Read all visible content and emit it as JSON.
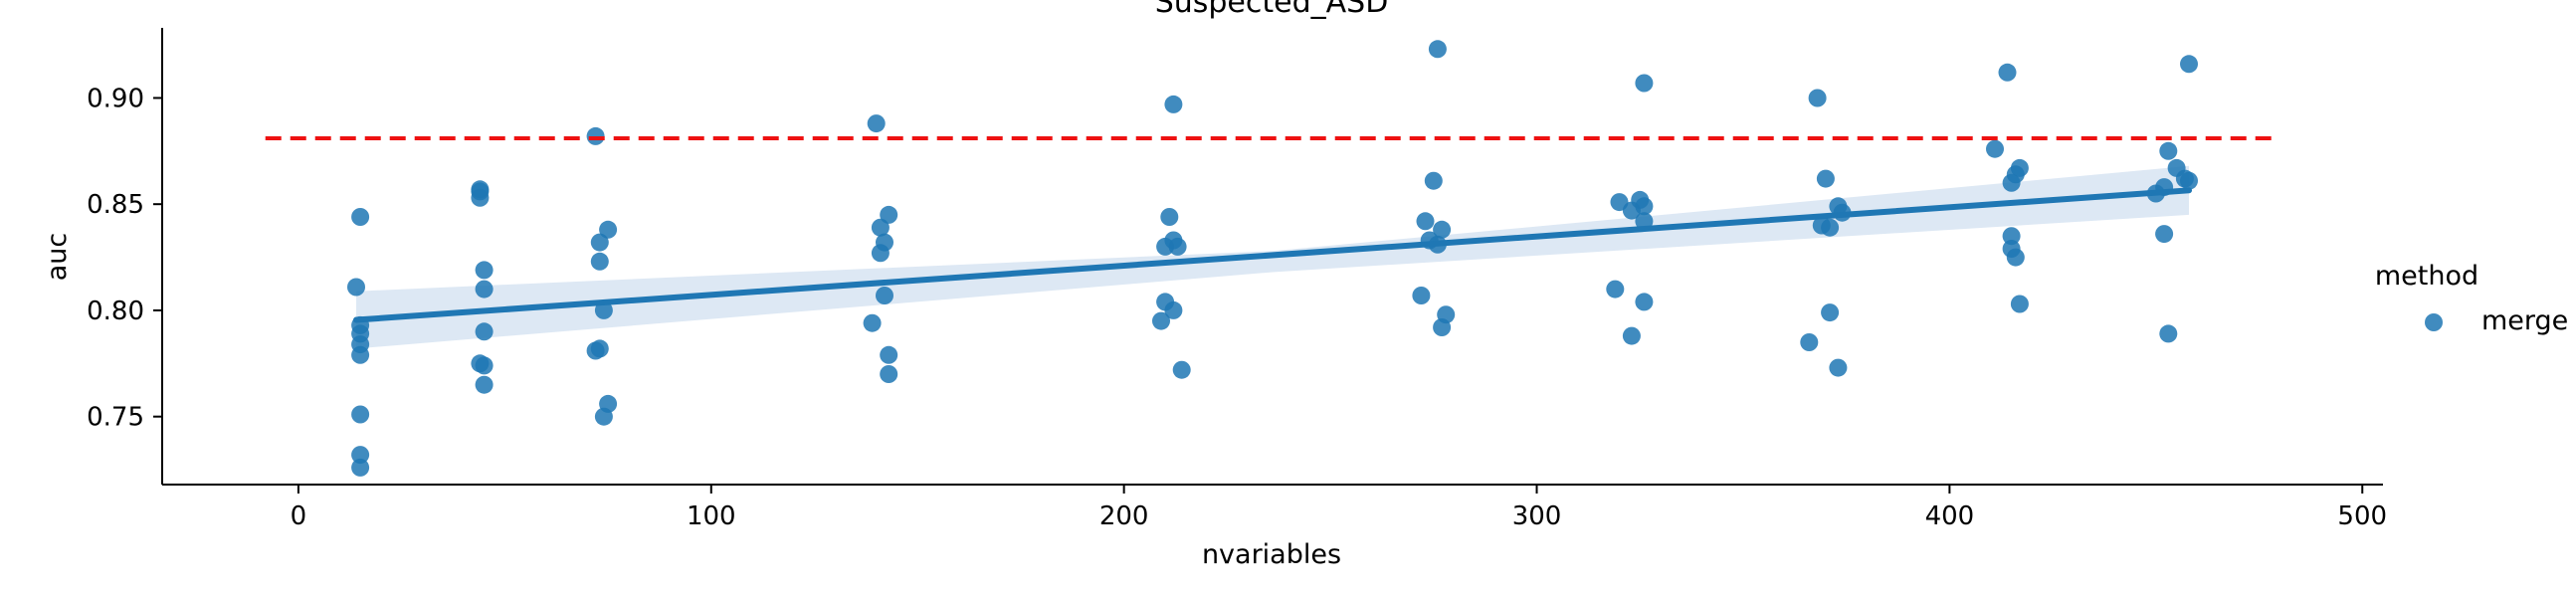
{
  "chart_data": {
    "type": "scatter",
    "title": "Suspected_ASD",
    "xlabel": "nvariables",
    "ylabel": "auc",
    "xlim": [
      -33,
      505
    ],
    "ylim": [
      0.718,
      0.933
    ],
    "xticks": [
      0,
      100,
      200,
      300,
      400,
      500
    ],
    "yticks": [
      0.75,
      0.8,
      0.85,
      0.9
    ],
    "ytick_labels": [
      "0.75",
      "0.80",
      "0.85",
      "0.90"
    ],
    "grid": false,
    "legend": {
      "title": "method",
      "placement": "right",
      "entries": [
        "merge"
      ]
    },
    "colors": {
      "points": "#1f77b4",
      "reference_line": "#ee1111",
      "ci_band": "#c6d9ec"
    },
    "series": [
      {
        "name": "merge",
        "points": [
          [
            14,
            0.811
          ],
          [
            15,
            0.844
          ],
          [
            15,
            0.793
          ],
          [
            15,
            0.789
          ],
          [
            15,
            0.784
          ],
          [
            15,
            0.779
          ],
          [
            15,
            0.751
          ],
          [
            15,
            0.732
          ],
          [
            15,
            0.726
          ],
          [
            44,
            0.856
          ],
          [
            44,
            0.857
          ],
          [
            44,
            0.853
          ],
          [
            44,
            0.775
          ],
          [
            45,
            0.819
          ],
          [
            45,
            0.81
          ],
          [
            45,
            0.79
          ],
          [
            45,
            0.774
          ],
          [
            45,
            0.765
          ],
          [
            72,
            0.882
          ],
          [
            73,
            0.832
          ],
          [
            73,
            0.823
          ],
          [
            72,
            0.781
          ],
          [
            73,
            0.782
          ],
          [
            74,
            0.8
          ],
          [
            75,
            0.838
          ],
          [
            75,
            0.756
          ],
          [
            74,
            0.75
          ],
          [
            140,
            0.888
          ],
          [
            141,
            0.839
          ],
          [
            141,
            0.827
          ],
          [
            142,
            0.832
          ],
          [
            143,
            0.845
          ],
          [
            142,
            0.807
          ],
          [
            139,
            0.794
          ],
          [
            143,
            0.779
          ],
          [
            143,
            0.77
          ],
          [
            212,
            0.897
          ],
          [
            211,
            0.844
          ],
          [
            210,
            0.83
          ],
          [
            212,
            0.833
          ],
          [
            213,
            0.83
          ],
          [
            210,
            0.804
          ],
          [
            212,
            0.8
          ],
          [
            209,
            0.795
          ],
          [
            214,
            0.772
          ],
          [
            276,
            0.923
          ],
          [
            275,
            0.861
          ],
          [
            273,
            0.842
          ],
          [
            274,
            0.833
          ],
          [
            276,
            0.831
          ],
          [
            277,
            0.838
          ],
          [
            272,
            0.807
          ],
          [
            278,
            0.798
          ],
          [
            277,
            0.792
          ],
          [
            326,
            0.907
          ],
          [
            320,
            0.851
          ],
          [
            323,
            0.847
          ],
          [
            325,
            0.852
          ],
          [
            326,
            0.849
          ],
          [
            326,
            0.842
          ],
          [
            319,
            0.81
          ],
          [
            326,
            0.804
          ],
          [
            323,
            0.788
          ],
          [
            368,
            0.9
          ],
          [
            370,
            0.862
          ],
          [
            369,
            0.84
          ],
          [
            371,
            0.839
          ],
          [
            373,
            0.849
          ],
          [
            374,
            0.846
          ],
          [
            371,
            0.799
          ],
          [
            366,
            0.785
          ],
          [
            373,
            0.773
          ],
          [
            414,
            0.912
          ],
          [
            411,
            0.876
          ],
          [
            415,
            0.86
          ],
          [
            416,
            0.864
          ],
          [
            417,
            0.867
          ],
          [
            415,
            0.835
          ],
          [
            415,
            0.829
          ],
          [
            416,
            0.825
          ],
          [
            417,
            0.803
          ],
          [
            458,
            0.916
          ],
          [
            453,
            0.875
          ],
          [
            455,
            0.867
          ],
          [
            457,
            0.862
          ],
          [
            458,
            0.861
          ],
          [
            452,
            0.858
          ],
          [
            450,
            0.855
          ],
          [
            452,
            0.836
          ],
          [
            453,
            0.789
          ]
        ]
      }
    ],
    "reference_line": {
      "y": 0.881,
      "x_range": [
        -8,
        480
      ],
      "style": "dashed"
    },
    "regression": {
      "x_range": [
        14,
        458
      ],
      "y_start": 0.7955,
      "y_end": 0.8565,
      "ci_start": [
        0.782,
        0.809
      ],
      "ci_mid": [
        0.818,
        0.828
      ],
      "ci_end": [
        0.845,
        0.868
      ]
    }
  }
}
